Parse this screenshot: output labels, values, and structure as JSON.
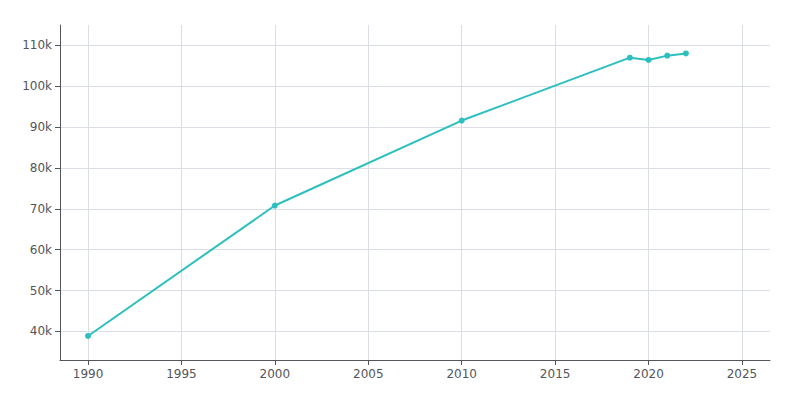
{
  "chart_data": {
    "type": "line",
    "x": [
      1990,
      2000,
      2010,
      2019,
      2020,
      2021,
      2022
    ],
    "values": [
      38885,
      70811,
      91611,
      107000,
      106447,
      107500,
      108040
    ],
    "color": "#2dbfbf",
    "marker": "circle",
    "xlim": [
      1988.5,
      2026.5
    ],
    "xticks": [
      1990,
      1995,
      2000,
      2005,
      2010,
      2015,
      2020,
      2025
    ],
    "ylim": [
      33000,
      115000
    ],
    "yticks": [
      {
        "value": 40000,
        "label": "40k"
      },
      {
        "value": 50000,
        "label": "50k"
      },
      {
        "value": 60000,
        "label": "60k"
      },
      {
        "value": 70000,
        "label": "70k"
      },
      {
        "value": 80000,
        "label": "80k"
      },
      {
        "value": 90000,
        "label": "90k"
      },
      {
        "value": 100000,
        "label": "100k"
      },
      {
        "value": 110000,
        "label": "110k"
      }
    ],
    "grid": true
  }
}
